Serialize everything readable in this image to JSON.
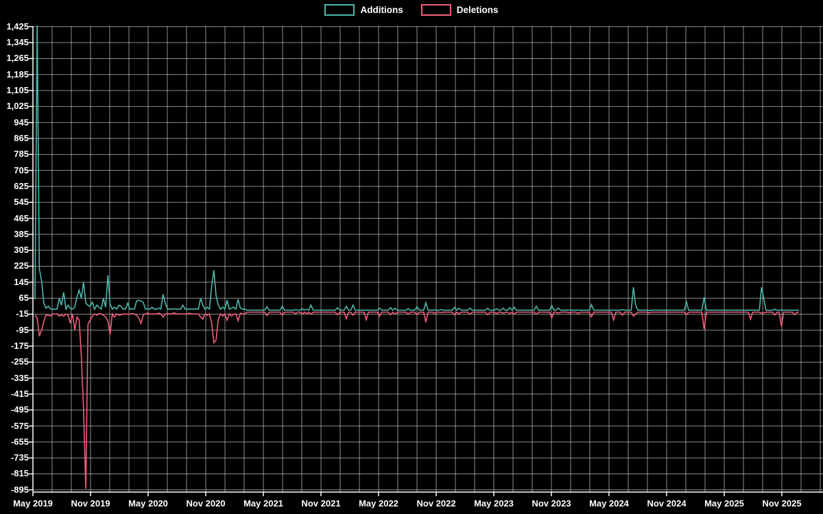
{
  "legend": {
    "additions_label": "Additions",
    "deletions_label": "Deletions"
  },
  "colors": {
    "background": "#000000",
    "additions": "#4fb8ae",
    "deletions": "#f3607c",
    "grid": "#9a9a9a",
    "axis": "#ffffff",
    "text": "#ffffff"
  },
  "chart_data": {
    "type": "line",
    "title": "",
    "xlabel": "",
    "ylabel": "",
    "legend_position": "top-center",
    "grid": true,
    "ylim": [
      -906,
      1428
    ],
    "y_tick_values": [
      1425,
      1345,
      1265,
      1185,
      1105,
      1025,
      945,
      865,
      785,
      705,
      625,
      545,
      465,
      385,
      305,
      225,
      145,
      65,
      -15,
      -95,
      -175,
      -255,
      -335,
      -415,
      -495,
      -575,
      -655,
      -735,
      -815,
      -895
    ],
    "y_tick_labels": [
      "1,425",
      "1,345",
      "1,265",
      "1,185",
      "1,105",
      "1,025",
      "945",
      "865",
      "785",
      "705",
      "625",
      "545",
      "465",
      "385",
      "305",
      "225",
      "145",
      "65",
      "-15",
      "-95",
      "-175",
      "-255",
      "-335",
      "-415",
      "-495",
      "-575",
      "-655",
      "-735",
      "-815",
      "-895"
    ],
    "x_tick_labels": [
      "May 2019",
      "Nov 2019",
      "May 2020",
      "Nov 2020",
      "May 2021",
      "Nov 2021",
      "May 2022",
      "Nov 2022",
      "May 2023",
      "Nov 2023",
      "May 2024",
      "Nov 2024",
      "May 2025",
      "Nov 2025"
    ],
    "x_grid_every_months": 2,
    "x_tick_every_months": 6,
    "weeks_total": 347,
    "series": [
      {
        "name": "Additions",
        "color_key": "additions",
        "baseline_segments": [
          {
            "from": 0,
            "to": 95,
            "value": 10
          },
          {
            "from": 96,
            "to": 346,
            "value": 5
          }
        ],
        "points": [
          [
            0,
            60
          ],
          [
            1,
            1430
          ],
          [
            2,
            210
          ],
          [
            3,
            150
          ],
          [
            4,
            40
          ],
          [
            5,
            15
          ],
          [
            6,
            25
          ],
          [
            7,
            12
          ],
          [
            9,
            10
          ],
          [
            11,
            65
          ],
          [
            12,
            30
          ],
          [
            13,
            95
          ],
          [
            15,
            30
          ],
          [
            16,
            15
          ],
          [
            18,
            20
          ],
          [
            19,
            70
          ],
          [
            20,
            105
          ],
          [
            21,
            65
          ],
          [
            22,
            145
          ],
          [
            23,
            40
          ],
          [
            24,
            30
          ],
          [
            25,
            25
          ],
          [
            26,
            45
          ],
          [
            28,
            30
          ],
          [
            29,
            20
          ],
          [
            31,
            65
          ],
          [
            32,
            20
          ],
          [
            33,
            180
          ],
          [
            34,
            35
          ],
          [
            36,
            20
          ],
          [
            38,
            30
          ],
          [
            39,
            25
          ],
          [
            42,
            40
          ],
          [
            44,
            12
          ],
          [
            46,
            50
          ],
          [
            47,
            55
          ],
          [
            48,
            50
          ],
          [
            49,
            45
          ],
          [
            51,
            12
          ],
          [
            53,
            20
          ],
          [
            56,
            15
          ],
          [
            58,
            85
          ],
          [
            59,
            40
          ],
          [
            60,
            10
          ],
          [
            63,
            12
          ],
          [
            67,
            30
          ],
          [
            70,
            10
          ],
          [
            73,
            12
          ],
          [
            75,
            65
          ],
          [
            76,
            30
          ],
          [
            78,
            20
          ],
          [
            80,
            124
          ],
          [
            81,
            205
          ],
          [
            82,
            80
          ],
          [
            83,
            30
          ],
          [
            85,
            20
          ],
          [
            87,
            55
          ],
          [
            89,
            15
          ],
          [
            90,
            20
          ],
          [
            92,
            60
          ],
          [
            93,
            15
          ],
          [
            105,
            22
          ],
          [
            112,
            25
          ],
          [
            118,
            8
          ],
          [
            121,
            12
          ],
          [
            123,
            10
          ],
          [
            125,
            30
          ],
          [
            137,
            18
          ],
          [
            141,
            25
          ],
          [
            144,
            30
          ],
          [
            150,
            5
          ],
          [
            156,
            15
          ],
          [
            161,
            18
          ],
          [
            163,
            15
          ],
          [
            169,
            12
          ],
          [
            173,
            22
          ],
          [
            177,
            42
          ],
          [
            181,
            6
          ],
          [
            184,
            8
          ],
          [
            190,
            20
          ],
          [
            192,
            15
          ],
          [
            197,
            15
          ],
          [
            205,
            15
          ],
          [
            209,
            12
          ],
          [
            212,
            15
          ],
          [
            215,
            18
          ],
          [
            217,
            20
          ],
          [
            227,
            25
          ],
          [
            234,
            28
          ],
          [
            237,
            15
          ],
          [
            242,
            5
          ],
          [
            246,
            5
          ],
          [
            252,
            33
          ],
          [
            262,
            5
          ],
          [
            266,
            8
          ],
          [
            271,
            120
          ],
          [
            272,
            30
          ],
          [
            278,
            3
          ],
          [
            295,
            46
          ],
          [
            303,
            70
          ],
          [
            324,
            5
          ],
          [
            329,
            120
          ],
          [
            330,
            63
          ],
          [
            335,
            10
          ],
          [
            338,
            5
          ],
          [
            344,
            5
          ],
          [
            346,
            5
          ]
        ]
      },
      {
        "name": "Deletions",
        "color_key": "deletions",
        "baseline_segments": [
          {
            "from": 0,
            "to": 95,
            "value": -14
          },
          {
            "from": 96,
            "to": 346,
            "value": -5
          }
        ],
        "points": [
          [
            0,
            -20
          ],
          [
            1,
            -35
          ],
          [
            2,
            -125
          ],
          [
            3,
            -95
          ],
          [
            4,
            -50
          ],
          [
            5,
            -20
          ],
          [
            6,
            -20
          ],
          [
            7,
            -25
          ],
          [
            9,
            -15
          ],
          [
            11,
            -25
          ],
          [
            12,
            -20
          ],
          [
            13,
            -25
          ],
          [
            15,
            -20
          ],
          [
            16,
            -60
          ],
          [
            18,
            -95
          ],
          [
            19,
            -30
          ],
          [
            20,
            -45
          ],
          [
            21,
            -225
          ],
          [
            22,
            -490
          ],
          [
            23,
            -890
          ],
          [
            24,
            -65
          ],
          [
            25,
            -45
          ],
          [
            26,
            -25
          ],
          [
            28,
            -20
          ],
          [
            29,
            -12
          ],
          [
            31,
            -20
          ],
          [
            32,
            -30
          ],
          [
            33,
            -50
          ],
          [
            34,
            -118
          ],
          [
            36,
            -30
          ],
          [
            38,
            -20
          ],
          [
            39,
            -18
          ],
          [
            42,
            -15
          ],
          [
            44,
            -12
          ],
          [
            46,
            -20
          ],
          [
            47,
            -35
          ],
          [
            48,
            -61
          ],
          [
            49,
            -20
          ],
          [
            51,
            -10
          ],
          [
            53,
            -15
          ],
          [
            56,
            -10
          ],
          [
            58,
            -30
          ],
          [
            59,
            -15
          ],
          [
            60,
            -12
          ],
          [
            63,
            -8
          ],
          [
            67,
            -15
          ],
          [
            70,
            -10
          ],
          [
            73,
            -15
          ],
          [
            75,
            -30
          ],
          [
            76,
            -40
          ],
          [
            78,
            -20
          ],
          [
            80,
            -60
          ],
          [
            81,
            -158
          ],
          [
            82,
            -145
          ],
          [
            83,
            -40
          ],
          [
            85,
            -25
          ],
          [
            87,
            -45
          ],
          [
            89,
            -25
          ],
          [
            90,
            -15
          ],
          [
            92,
            -48
          ],
          [
            93,
            -10
          ],
          [
            105,
            -22
          ],
          [
            112,
            -20
          ],
          [
            118,
            -12
          ],
          [
            121,
            -15
          ],
          [
            123,
            -12
          ],
          [
            125,
            -15
          ],
          [
            137,
            -18
          ],
          [
            141,
            -38
          ],
          [
            144,
            -20
          ],
          [
            150,
            -43
          ],
          [
            156,
            -25
          ],
          [
            161,
            -18
          ],
          [
            163,
            -15
          ],
          [
            169,
            -15
          ],
          [
            173,
            -18
          ],
          [
            177,
            -55
          ],
          [
            181,
            -10
          ],
          [
            184,
            -6
          ],
          [
            190,
            -18
          ],
          [
            192,
            -12
          ],
          [
            197,
            -15
          ],
          [
            205,
            -18
          ],
          [
            209,
            -12
          ],
          [
            212,
            -10
          ],
          [
            215,
            -12
          ],
          [
            217,
            -15
          ],
          [
            227,
            -15
          ],
          [
            234,
            -33
          ],
          [
            237,
            -10
          ],
          [
            242,
            -8
          ],
          [
            246,
            -10
          ],
          [
            252,
            -28
          ],
          [
            262,
            -44
          ],
          [
            266,
            -20
          ],
          [
            271,
            -25
          ],
          [
            272,
            -15
          ],
          [
            278,
            -8
          ],
          [
            295,
            -18
          ],
          [
            303,
            -90
          ],
          [
            324,
            -40
          ],
          [
            329,
            -10
          ],
          [
            330,
            -8
          ],
          [
            335,
            -20
          ],
          [
            338,
            -77
          ],
          [
            344,
            -18
          ],
          [
            346,
            -5
          ]
        ]
      }
    ]
  }
}
